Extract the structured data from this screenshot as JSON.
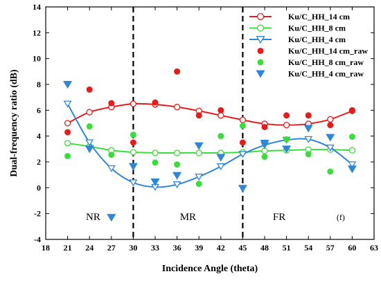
{
  "chart_data": {
    "type": "line",
    "xlabel": "Incidence Angle (theta)",
    "ylabel": "Dual-frequency ratio (dB)",
    "xlim": [
      18,
      63
    ],
    "ylim": [
      -4,
      14
    ],
    "xticks": [
      18,
      21,
      24,
      27,
      30,
      33,
      36,
      39,
      42,
      45,
      48,
      51,
      54,
      57,
      60,
      63
    ],
    "yticks": [
      -4,
      -2,
      0,
      2,
      4,
      6,
      8,
      10,
      12,
      14
    ],
    "grid": false,
    "legend_position": "top-right",
    "regions": [
      {
        "label": "NR",
        "x": 24.5,
        "y": -2.5
      },
      {
        "label": "MR",
        "x": 37.5,
        "y": -2.5
      },
      {
        "label": "FR",
        "x": 50,
        "y": -2.5
      }
    ],
    "region_boundaries": [
      30,
      45
    ],
    "panel_label": "(f)",
    "series": [
      {
        "name": "Ku/C_HH_14 cm",
        "kind": "line",
        "marker": "circle-open",
        "color": "#e51c1c",
        "x": [
          21,
          24,
          27,
          30,
          33,
          36,
          39,
          42,
          45,
          48,
          51,
          54,
          57,
          60
        ],
        "y": [
          5.0,
          5.85,
          6.25,
          6.5,
          6.45,
          6.25,
          5.95,
          5.6,
          5.25,
          4.95,
          4.85,
          4.95,
          5.3,
          5.95
        ]
      },
      {
        "name": "Ku/C_HH_8 cm",
        "kind": "line",
        "marker": "circle-open",
        "color": "#3ddc3d",
        "x": [
          21,
          24,
          27,
          30,
          33,
          36,
          39,
          42,
          45,
          48,
          51,
          54,
          57,
          60
        ],
        "y": [
          3.45,
          3.2,
          2.9,
          2.75,
          2.7,
          2.7,
          2.7,
          2.7,
          2.75,
          2.85,
          2.9,
          2.95,
          2.95,
          2.9
        ]
      },
      {
        "name": "Ku/C_HH_4 cm",
        "kind": "line",
        "marker": "triangle-down-open",
        "color": "#2e86d6",
        "x": [
          21,
          24,
          27,
          30,
          33,
          36,
          39,
          42,
          45,
          48,
          51,
          54,
          57,
          60
        ],
        "y": [
          6.5,
          3.5,
          1.5,
          0.4,
          0.05,
          0.25,
          0.85,
          1.65,
          2.6,
          3.3,
          3.7,
          3.75,
          3.1,
          1.8
        ]
      },
      {
        "name": "Ku/C_HH_14 cm_raw",
        "kind": "scatter",
        "marker": "circle-filled",
        "color": "#e51c1c",
        "x": [
          21,
          24,
          27,
          30,
          33,
          36,
          39,
          42,
          45,
          48,
          51,
          54,
          57,
          60
        ],
        "y": [
          4.3,
          7.6,
          6.55,
          3.5,
          6.6,
          9.0,
          5.6,
          6.0,
          3.5,
          4.7,
          5.6,
          5.6,
          4.85,
          6.0
        ]
      },
      {
        "name": "Ku/C_HH_8 cm_raw",
        "kind": "scatter",
        "marker": "circle-filled",
        "color": "#3ddc3d",
        "x": [
          21,
          24,
          27,
          30,
          33,
          36,
          39,
          42,
          45,
          48,
          51,
          54,
          57,
          60
        ],
        "y": [
          2.45,
          4.75,
          2.55,
          4.1,
          1.95,
          1.8,
          0.3,
          4.0,
          4.8,
          2.4,
          3.75,
          2.6,
          1.25,
          3.95
        ]
      },
      {
        "name": "Ku/C_HH_4 cm_raw",
        "kind": "scatter",
        "marker": "triangle-down-filled",
        "color": "#2e86d6",
        "x": [
          21,
          24,
          27,
          30,
          33,
          36,
          39,
          42,
          45,
          48,
          51,
          54,
          57,
          60
        ],
        "y": [
          8.0,
          3.0,
          -2.3,
          1.65,
          0.45,
          0.95,
          3.25,
          2.35,
          -0.05,
          3.45,
          3.0,
          4.6,
          3.9,
          1.45
        ]
      }
    ]
  }
}
